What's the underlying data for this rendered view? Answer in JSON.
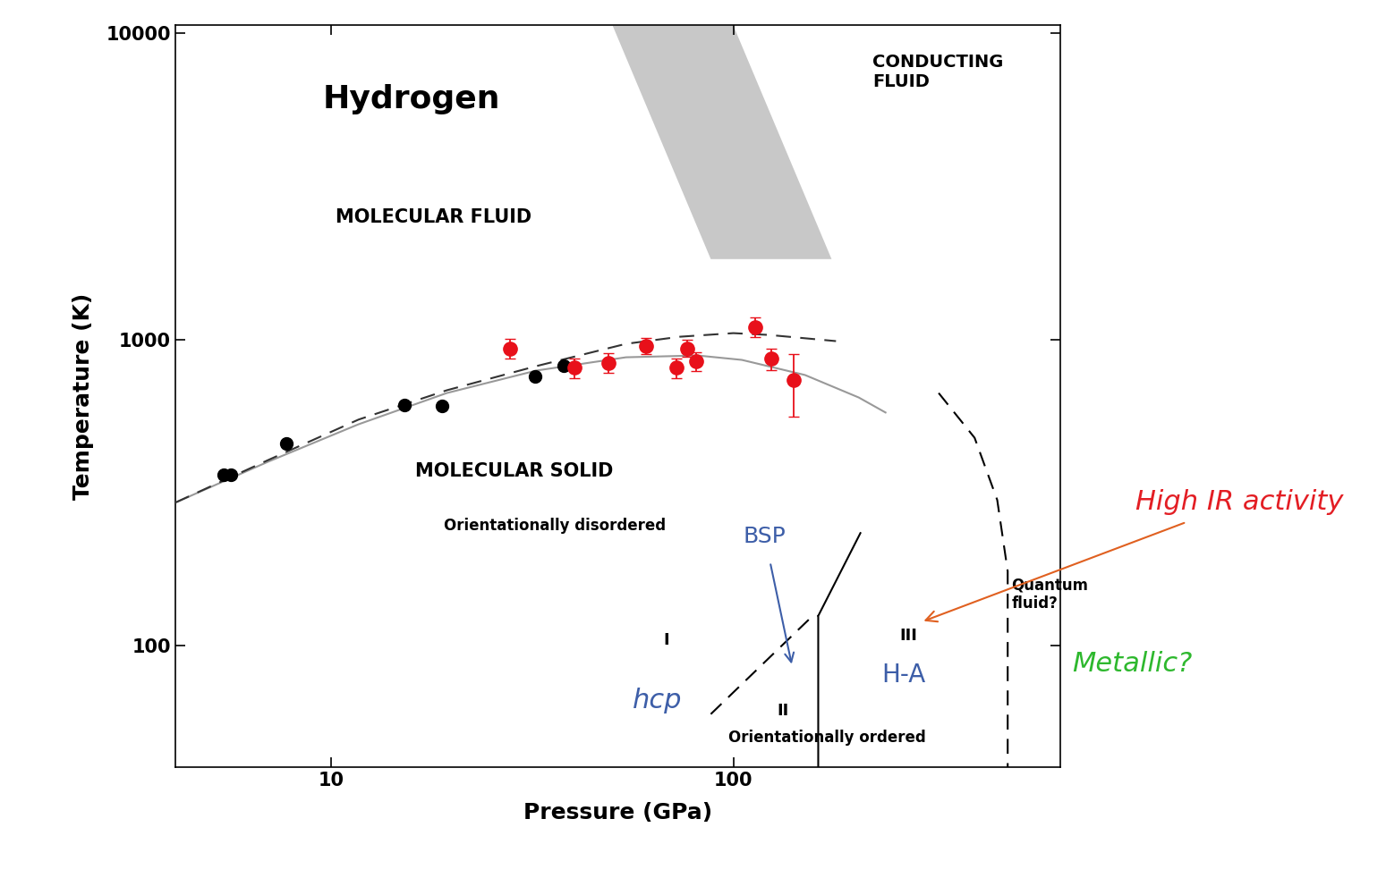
{
  "chart_data": {
    "type": "line",
    "xlabel": "Pressure (GPa)",
    "ylabel": "Temperature (K)",
    "log": true,
    "grid": false,
    "xlim": [
      4.1,
      650
    ],
    "ylim": [
      40,
      10600
    ],
    "xticks": [
      10,
      100
    ],
    "yticks": [
      100,
      1000,
      10000
    ],
    "series": [
      {
        "type": "area",
        "color": "#c8c8c8",
        "x": [
          50.1,
          100,
          175.5,
          87.9
        ],
        "values": [
          10600,
          10600,
          1829,
          1829
        ]
      },
      {
        "type": "line",
        "color": "#999999",
        "line_style": "solid",
        "x": [
          4.1,
          6.99,
          11.7,
          19.4,
          32.4,
          54.1,
          81.5,
          105,
          150.7,
          205,
          239
        ],
        "values": [
          293,
          399,
          528,
          668,
          791,
          874,
          886,
          857,
          765,
          646,
          577
        ]
      },
      {
        "type": "line",
        "color": "#333333",
        "line_style": "dashed",
        "x": [
          4.1,
          6.99,
          11.7,
          19.4,
          32.4,
          54.1,
          73.6,
          100,
          122.6,
          180
        ],
        "values": [
          293,
          404,
          547,
          682,
          818,
          967,
          1020,
          1048,
          1034,
          987
        ]
      },
      {
        "type": "scatter",
        "color": "#000000",
        "marker": "o",
        "x": [
          5.41,
          5.64,
          7.74,
          15.2,
          18.9,
          32.1,
          37.8
        ],
        "values": [
          361,
          361,
          456,
          612,
          607,
          755,
          818
        ]
      },
      {
        "type": "scatter",
        "color": "#e8101a",
        "marker": "o",
        "x": [
          27.8,
          40.2,
          48.9,
          60.6,
          72.4,
          76.6,
          80.7,
          113.6,
          124,
          141.6
        ],
        "values": [
          935,
          807,
          840,
          954,
          807,
          935,
          846,
          1098,
          863,
          735
        ],
        "error_low": [
          70,
          60,
          60,
          60,
          60,
          60,
          60,
          80,
          70,
          177
        ],
        "error_high": [
          70,
          60,
          60,
          60,
          60,
          60,
          60,
          80,
          70,
          163
        ]
      },
      {
        "type": "line",
        "color": "#000000",
        "line_style": "dashed",
        "x": [
          87.9,
          154.5,
          162.6
        ],
        "values": [
          59.7,
          122,
          125
        ]
      },
      {
        "type": "line",
        "color": "#000000",
        "line_style": "solid",
        "x": [
          162.6,
          162.6,
          207
        ],
        "values": [
          40,
          125,
          233
        ]
      },
      {
        "type": "line",
        "color": "#000000",
        "line_style": "dashed",
        "x": [
          324,
          398,
          453,
          481,
          481
        ],
        "values": [
          668,
          477,
          299,
          175,
          40
        ]
      }
    ],
    "annotations": [
      {
        "text": "Hydrogen",
        "color": "#000000"
      },
      {
        "text": "MOLECULAR FLUID",
        "color": "#000000"
      },
      {
        "text": "CONDUCTING\nFLUID",
        "color": "#000000"
      },
      {
        "text": "MOLECULAR SOLID",
        "color": "#000000"
      },
      {
        "text": "Orientationally disordered",
        "color": "#000000"
      },
      {
        "text": "I",
        "color": "#000000"
      },
      {
        "text": "II",
        "color": "#000000"
      },
      {
        "text": "III",
        "color": "#000000"
      },
      {
        "text": "Orientationally ordered",
        "color": "#000000"
      },
      {
        "text": "Quantum\nfluid?",
        "color": "#000000"
      },
      {
        "text": "hcp",
        "color": "#3d5ea8"
      },
      {
        "text": "H-A",
        "color": "#3d5ea8"
      },
      {
        "text": "BSP",
        "color": "#3d5ea8"
      },
      {
        "text": "High IR activity",
        "color": "#e31e24"
      },
      {
        "text": "Metallic?",
        "color": "#2eb82e"
      }
    ]
  }
}
